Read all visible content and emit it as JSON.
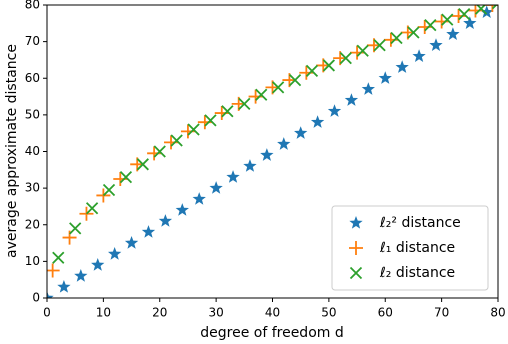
{
  "chart_data": {
    "type": "scatter",
    "x_label": "degree of freedom d",
    "y_label": "average approximate distance",
    "xlim": [
      0,
      80
    ],
    "ylim": [
      0,
      80
    ],
    "xticks": [
      0,
      10,
      20,
      30,
      40,
      50,
      60,
      70,
      80
    ],
    "yticks": [
      0,
      10,
      20,
      30,
      40,
      50,
      60,
      70,
      80
    ],
    "legend": "lower right",
    "series": [
      {
        "name": "ℓ₂² distance",
        "color": "#1f77b4",
        "marker": "star",
        "x": [
          0,
          3,
          6,
          9,
          12,
          15,
          18,
          21,
          24,
          27,
          30,
          33,
          36,
          39,
          42,
          45,
          48,
          51,
          54,
          57,
          60,
          63,
          66,
          69,
          72,
          75,
          78
        ],
        "values": [
          0,
          3,
          6,
          9,
          12,
          15,
          18,
          21,
          24,
          27,
          30,
          33,
          36,
          39,
          42,
          45,
          48,
          51,
          54,
          57,
          60,
          63,
          66,
          69,
          72,
          75,
          78
        ]
      },
      {
        "name": "ℓ₁ distance",
        "color": "#ff7f0e",
        "marker": "plus",
        "x": [
          1,
          4,
          7,
          10,
          13,
          16,
          19,
          22,
          25,
          28,
          31,
          34,
          37,
          40,
          43,
          46,
          49,
          52,
          55,
          58,
          61,
          64,
          67,
          70,
          73,
          76,
          79
        ],
        "values": [
          7.5,
          16.5,
          23,
          28,
          32.5,
          36.5,
          39.5,
          42.5,
          45.5,
          48,
          50.5,
          53,
          55,
          57.5,
          59.5,
          61.5,
          63.5,
          65.5,
          67,
          69,
          70.5,
          72.5,
          74,
          75.5,
          77,
          78.5,
          80
        ]
      },
      {
        "name": "ℓ₂ distance",
        "color": "#2ca02c",
        "marker": "x",
        "x": [
          2,
          5,
          8,
          11,
          14,
          17,
          20,
          23,
          26,
          29,
          32,
          35,
          38,
          41,
          44,
          47,
          50,
          53,
          56,
          59,
          62,
          65,
          68,
          71,
          74,
          77,
          80
        ],
        "values": [
          11,
          19,
          24.5,
          29.5,
          33,
          36.5,
          40,
          43,
          46,
          48.5,
          51,
          53,
          55.5,
          57.5,
          59.5,
          62,
          63.5,
          65.5,
          67.5,
          69,
          71,
          72.5,
          74.5,
          76,
          77.5,
          79,
          80.5
        ]
      }
    ]
  }
}
